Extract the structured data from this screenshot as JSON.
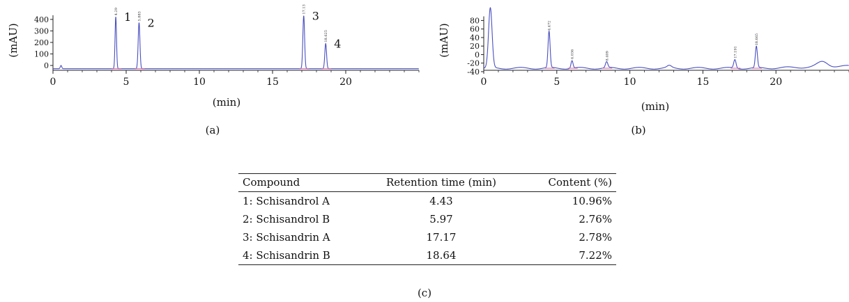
{
  "chart_data": [
    {
      "type": "line",
      "panel": "(a)",
      "xlabel": "(min)",
      "ylabel": "(mAU)",
      "xlim": [
        0,
        25
      ],
      "ylim": [
        -60,
        520
      ],
      "x_ticks": [
        0,
        5,
        10,
        15,
        20
      ],
      "y_ticks": [
        0,
        100,
        200,
        300,
        400
      ],
      "baseline": -28,
      "series": [
        {
          "color": "#4a4fc0",
          "peaks": [
            {
              "rt": 0.55,
              "height": 28,
              "width": 0.05
            },
            {
              "rt": 4.29,
              "height": 450,
              "width": 0.05
            },
            {
              "rt": 5.88,
              "height": 400,
              "width": 0.06
            },
            {
              "rt": 17.13,
              "height": 460,
              "width": 0.06
            },
            {
              "rt": 18.63,
              "height": 218,
              "width": 0.06
            }
          ]
        }
      ],
      "peak_labels": [
        {
          "rt": 4.29,
          "number": "1",
          "tag": "4.29"
        },
        {
          "rt": 5.88,
          "number": "2",
          "tag": "5.883"
        },
        {
          "rt": 17.13,
          "number": "3",
          "tag": "17.13"
        },
        {
          "rt": 18.63,
          "number": "4",
          "tag": "18.625"
        }
      ]
    },
    {
      "type": "line",
      "panel": "(b)",
      "xlabel": "(min)",
      "ylabel": "(mAU)",
      "xlim": [
        0,
        25
      ],
      "ylim": [
        -45,
        115
      ],
      "x_ticks": [
        0,
        5,
        10,
        15,
        20
      ],
      "y_ticks": [
        -40,
        -20,
        0,
        20,
        40,
        60,
        80
      ],
      "baseline": -32,
      "series": [
        {
          "color": "#4a4fc0",
          "peaks": [
            {
              "rt": 0.45,
              "height": 140,
              "width": 0.12
            },
            {
              "rt": 4.47,
              "height": 85,
              "width": 0.07
            },
            {
              "rt": 6.04,
              "height": 18,
              "width": 0.07
            },
            {
              "rt": 8.41,
              "height": 14,
              "width": 0.08
            },
            {
              "rt": 12.7,
              "height": 5,
              "width": 0.15
            },
            {
              "rt": 17.19,
              "height": 20,
              "width": 0.08
            },
            {
              "rt": 18.66,
              "height": 50,
              "width": 0.07
            },
            {
              "rt": 23.2,
              "height": 12,
              "width": 0.35
            }
          ]
        }
      ],
      "peak_labels": [
        {
          "rt": 4.47,
          "tag": "4.472"
        },
        {
          "rt": 6.04,
          "tag": "6.036"
        },
        {
          "rt": 8.41,
          "tag": "8.409"
        },
        {
          "rt": 17.19,
          "tag": "17.191"
        },
        {
          "rt": 18.66,
          "tag": "18.665"
        }
      ]
    },
    {
      "type": "table",
      "panel": "(c)",
      "columns": [
        "Compound",
        "Retention time (min)",
        "Content (%)"
      ],
      "rows": [
        [
          "1: Schisandrol A",
          "4.43",
          "10.96%"
        ],
        [
          "2: Schisandrol B",
          "5.97",
          "2.76%"
        ],
        [
          "3: Schisandrin A",
          "17.17",
          "2.78%"
        ],
        [
          "4: Schisandrin B",
          "18.64",
          "7.22%"
        ]
      ]
    }
  ],
  "captions": {
    "a": "(a)",
    "b": "(b)",
    "c": "(c)"
  }
}
